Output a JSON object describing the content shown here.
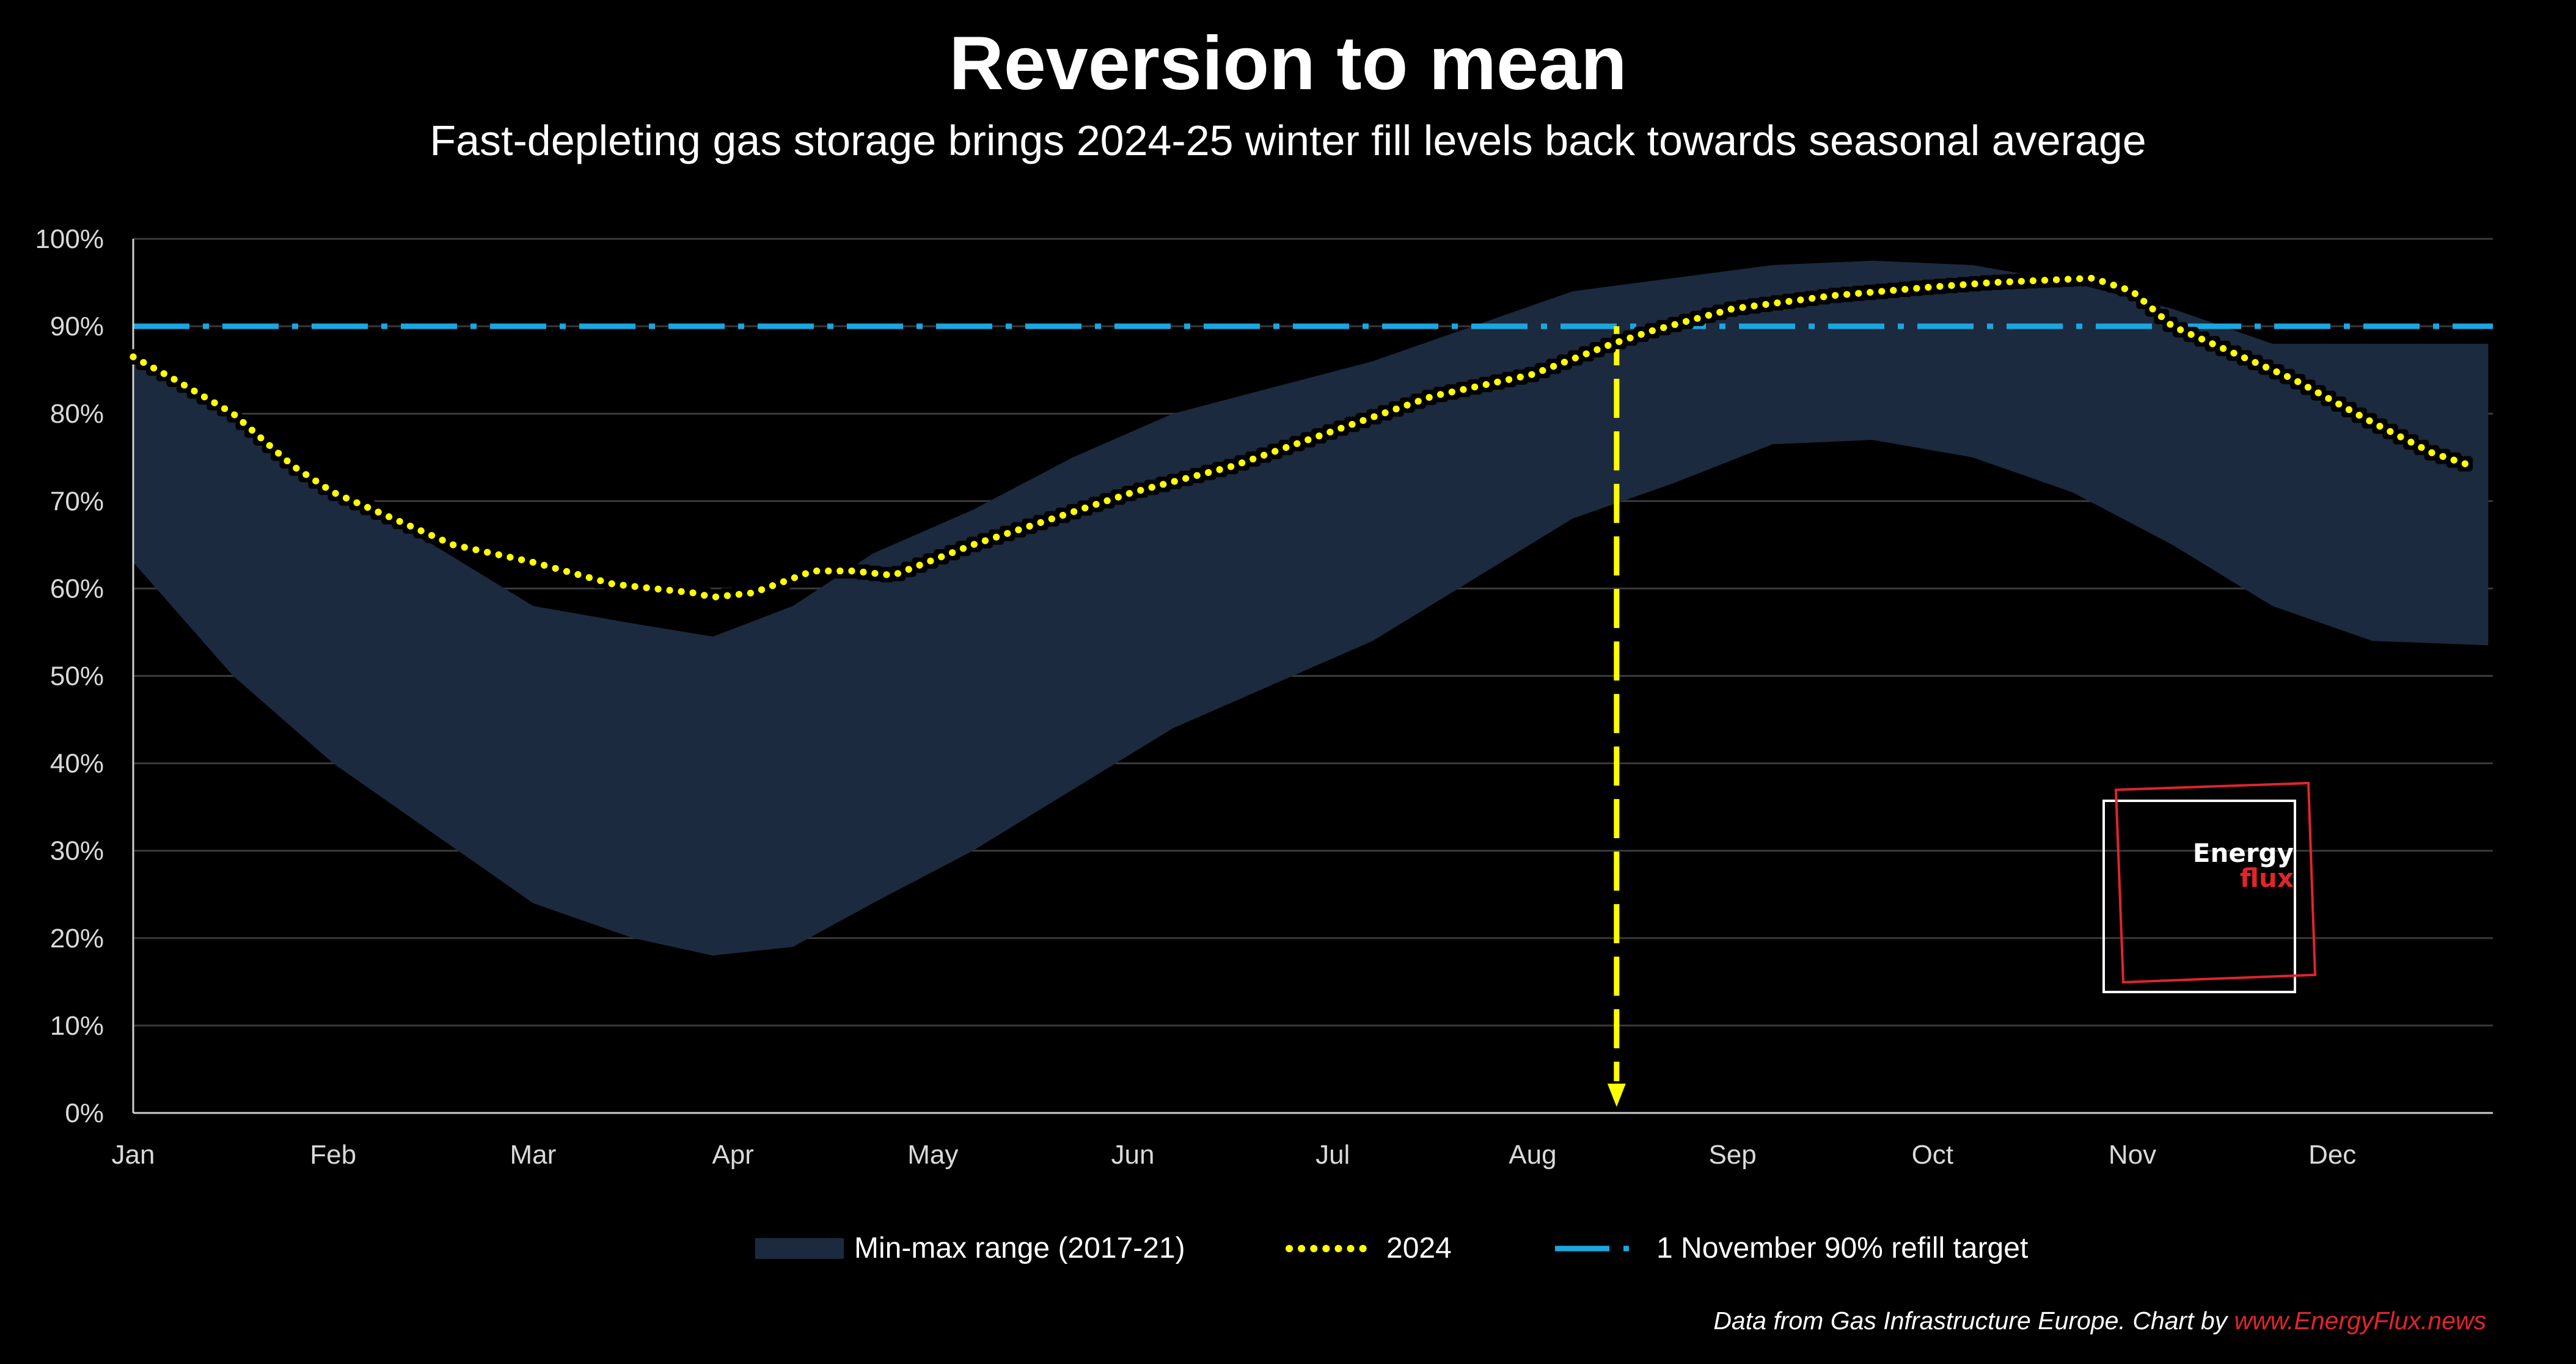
{
  "colors": {
    "background": "#000000",
    "band": "#1b2a3e",
    "series_2024": "#ffff00",
    "target": "#1aa7e0",
    "arrow": "#ffff00",
    "grid": "#3a3a3a",
    "brand_red": "#e0252b"
  },
  "chart_data": {
    "type": "area",
    "title": "Reversion to mean",
    "subtitle": "Fast-depleting gas storage brings 2024-25 winter fill levels back towards seasonal average",
    "xlabel": "",
    "ylabel": "",
    "y_tick_labels": [
      "0%",
      "10%",
      "20%",
      "30%",
      "40%",
      "50%",
      "60%",
      "70%",
      "80%",
      "90%",
      "100%"
    ],
    "ylim": [
      0,
      100
    ],
    "x_tick_labels": [
      "Jan",
      "Feb",
      "Mar",
      "Apr",
      "May",
      "Jun",
      "Jul",
      "Aug",
      "Sep",
      "Oct",
      "Nov",
      "Dec"
    ],
    "xlim": [
      0,
      11.78
    ],
    "grid": true,
    "legend_position": "bottom",
    "band": {
      "name": "Min-max range (2017-21)",
      "x": [
        0,
        0.5,
        1,
        1.5,
        2,
        2.5,
        2.9,
        3.3,
        3.7,
        4.2,
        4.7,
        5.2,
        5.7,
        6.2,
        6.7,
        7.2,
        7.7,
        8.2,
        8.7,
        9.2,
        9.7,
        10.2,
        10.7,
        11.2,
        11.78
      ],
      "max": [
        87,
        80,
        71,
        65,
        58,
        56,
        54.5,
        58,
        64,
        69,
        75,
        80,
        83,
        86,
        90,
        94,
        95.5,
        97,
        97.5,
        97,
        95,
        92,
        88,
        88,
        88
      ],
      "min": [
        63,
        50,
        40,
        32,
        24,
        20,
        18,
        19,
        24,
        30,
        37,
        44,
        49,
        54,
        61,
        68,
        72,
        76.5,
        77,
        75,
        71,
        65,
        58,
        54,
        53.5
      ]
    },
    "series": [
      {
        "name": "2024",
        "x": [
          0,
          0.2,
          0.5,
          0.8,
          1,
          1.3,
          1.6,
          2,
          2.4,
          2.8,
          2.9,
          3.1,
          3.4,
          3.6,
          3.8,
          4.2,
          4.6,
          5,
          5.5,
          6,
          6.5,
          7,
          7.4,
          7.6,
          8,
          8.5,
          9,
          9.3,
          9.8,
          10,
          10.2,
          10.5,
          10.8,
          11.2,
          11.5,
          11.7
        ],
        "values": [
          86.5,
          84,
          80,
          74,
          71,
          68,
          65,
          63,
          60.5,
          59.5,
          59,
          59.5,
          62,
          62,
          61.5,
          65,
          68,
          71,
          74,
          78,
          82,
          84.5,
          88,
          89.5,
          92,
          93.5,
          94.5,
          95,
          95.5,
          94,
          90,
          87,
          84,
          79,
          75.5,
          74
        ]
      }
    ],
    "target": {
      "name": "1 November 90% refill target",
      "value": 90
    },
    "annotation_x": 7.42
  },
  "legend": {
    "band_label": "Min-max range (2017-21)",
    "series_label": "2024",
    "target_label": "1 November 90% refill target"
  },
  "logo": {
    "line1": "Energy",
    "line2": "flux"
  },
  "source": {
    "text": "Data from Gas Infrastructure Europe. Chart by ",
    "link": "www.EnergyFlux.news"
  }
}
